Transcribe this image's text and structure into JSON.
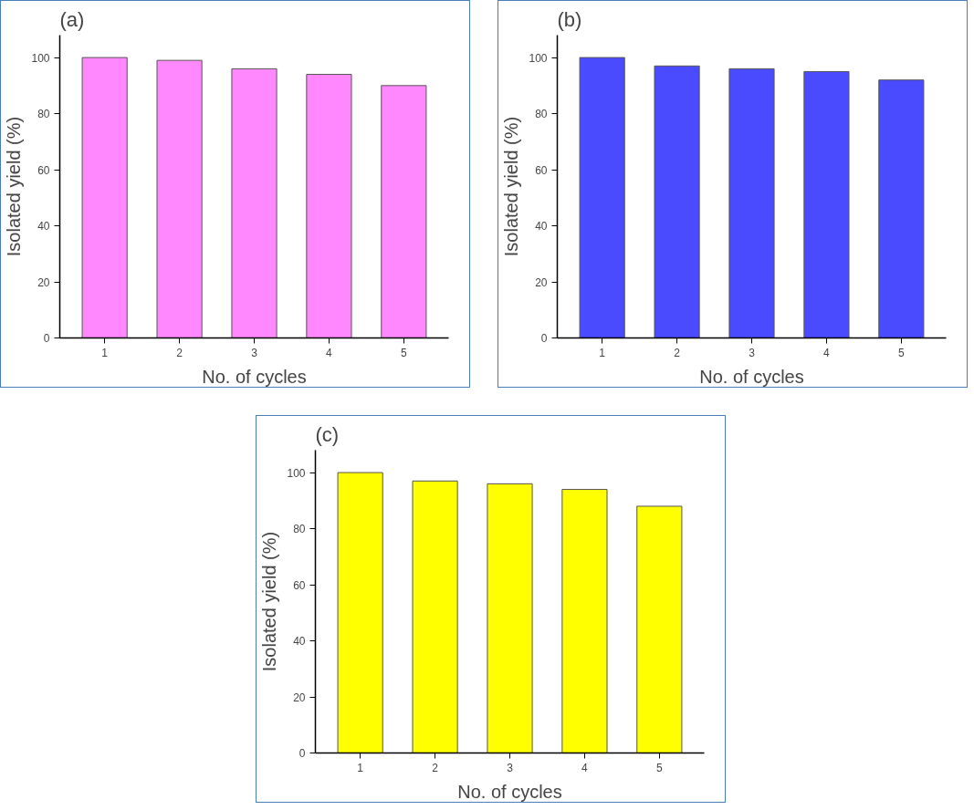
{
  "chart_data": [
    {
      "type": "bar",
      "title": "(a)",
      "xlabel": "No. of cycles",
      "ylabel": "Isolated yield (%)",
      "categories": [
        "1",
        "2",
        "3",
        "4",
        "5"
      ],
      "values": [
        100,
        99,
        96,
        94,
        90
      ],
      "color": "#ff88ff",
      "ylim": [
        0,
        108
      ],
      "yticks": [
        0,
        20,
        40,
        60,
        80,
        100
      ],
      "grid": false
    },
    {
      "type": "bar",
      "title": "(b)",
      "xlabel": "No. of cycles",
      "ylabel": "Isolated yield (%)",
      "categories": [
        "1",
        "2",
        "3",
        "4",
        "5"
      ],
      "values": [
        100,
        97,
        96,
        95,
        92
      ],
      "color": "#4a4aff",
      "ylim": [
        0,
        108
      ],
      "yticks": [
        0,
        20,
        40,
        60,
        80,
        100
      ],
      "grid": false
    },
    {
      "type": "bar",
      "title": "(c)",
      "xlabel": "No. of cycles",
      "ylabel": "Isolated yield (%)",
      "categories": [
        "1",
        "2",
        "3",
        "4",
        "5"
      ],
      "values": [
        100,
        97,
        96,
        94,
        88
      ],
      "color": "#ffff00",
      "ylim": [
        0,
        108
      ],
      "yticks": [
        0,
        20,
        40,
        60,
        80,
        100
      ],
      "grid": false
    }
  ]
}
